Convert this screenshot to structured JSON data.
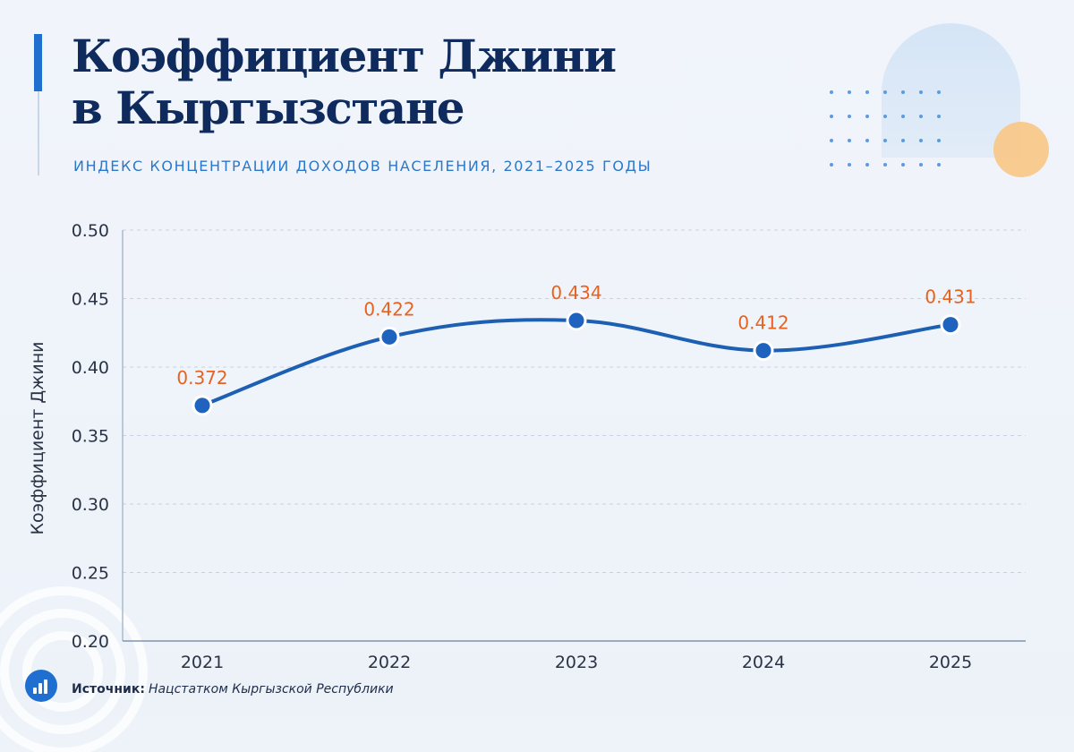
{
  "header": {
    "title_line1": "Коэффициент Джини",
    "title_line2": "в Кыргызстане",
    "subtitle": "ИНДЕКС КОНЦЕНТРАЦИИ ДОХОДОВ НАСЕЛЕНИЯ, 2021–2025 ГОДЫ"
  },
  "footer": {
    "source_label": "Источник:",
    "source_value": "Нацстатком Кыргызской Республики",
    "badge_icon": "bar-chart-icon"
  },
  "colors": {
    "line": "#1d5fb3",
    "point": "#1f63be",
    "data_label": "#e8621f",
    "title": "#0f2a5c",
    "subtitle": "#2b78c9",
    "grid": "#c5d2e3",
    "axis_text": "#2a3345"
  },
  "chart_data": {
    "type": "line",
    "title": "",
    "xlabel": "",
    "ylabel": "Коэффициент Джини",
    "categories": [
      "2021",
      "2022",
      "2023",
      "2024",
      "2025"
    ],
    "series": [
      {
        "values": [
          0.372,
          0.422,
          0.434,
          0.412,
          0.431
        ],
        "labels": [
          "0.372",
          "0.422",
          "0.434",
          "0.412",
          "0.431"
        ]
      }
    ],
    "ylim": [
      0.2,
      0.5
    ],
    "yticks": [
      "0.20",
      "0.25",
      "0.30",
      "0.35",
      "0.40",
      "0.45",
      "0.50"
    ],
    "grid": "horizontal-dashed",
    "smooth": true
  }
}
